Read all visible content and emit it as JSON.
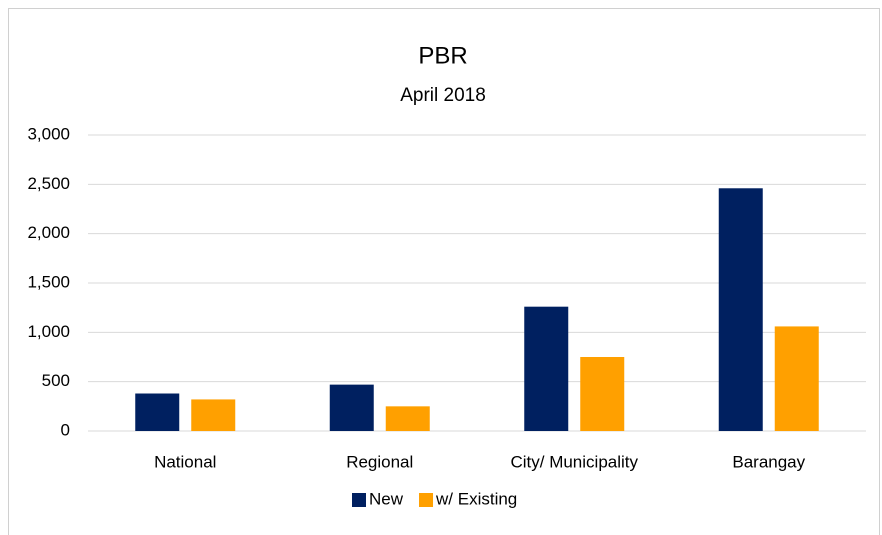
{
  "chart_data": {
    "type": "bar",
    "title": "PBR",
    "subtitle": "April 2018",
    "categories": [
      "National",
      "Regional",
      "City/ Municipality",
      "Barangay"
    ],
    "series": [
      {
        "name": "New",
        "color": "#002060",
        "values": [
          380,
          470,
          1260,
          2460
        ]
      },
      {
        "name": "w/ Existing",
        "color": "#ffa000",
        "values": [
          320,
          250,
          750,
          1060
        ]
      }
    ],
    "ylim": [
      0,
      3000
    ],
    "yticks": [
      0,
      500,
      {
        "value": 1000,
        "label": "1,000"
      },
      {
        "value": 1500,
        "label": "1,500"
      },
      {
        "value": 2000,
        "label": "2,000"
      },
      {
        "value": 2500,
        "label": "2,500"
      },
      {
        "value": 3000,
        "label": "3,000"
      }
    ],
    "grid": true,
    "legend": "bottom"
  }
}
